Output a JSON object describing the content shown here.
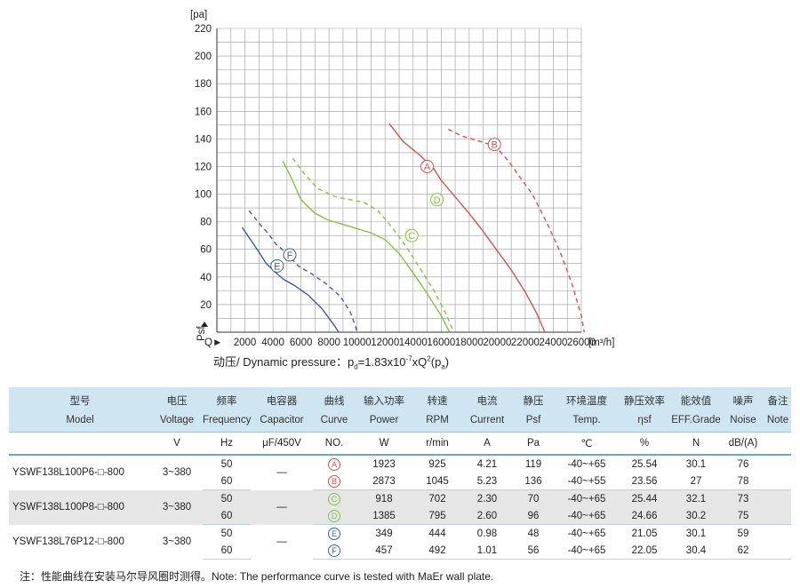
{
  "chart_data": {
    "type": "line",
    "x": {
      "min": 0,
      "max": 26000,
      "ticks": [
        2000,
        4000,
        6000,
        8000,
        10000,
        12000,
        14000,
        16000,
        18000,
        20000,
        22000,
        24000,
        26000
      ],
      "prefix": "Q►",
      "unit": "[m³/h]"
    },
    "y": {
      "min": 0,
      "max": 220,
      "ticks": [
        20,
        40,
        60,
        80,
        100,
        120,
        140,
        160,
        180,
        200,
        220
      ],
      "unit": "[pa]",
      "axis_tag": "Psf"
    },
    "grid": true,
    "series": [
      {
        "name": "A",
        "color": "#d9504c",
        "style": "solid",
        "label_at": [
          15000,
          120
        ],
        "points": [
          [
            12300,
            151
          ],
          [
            13300,
            138
          ],
          [
            14500,
            128
          ],
          [
            15500,
            118
          ],
          [
            16000,
            110
          ],
          [
            17000,
            98
          ],
          [
            18000,
            86
          ],
          [
            19000,
            73
          ],
          [
            20000,
            59
          ],
          [
            21000,
            45
          ],
          [
            22000,
            29
          ],
          [
            22800,
            14
          ],
          [
            23400,
            0
          ]
        ]
      },
      {
        "name": "B",
        "color": "#d9504c",
        "style": "dashed",
        "label_at": [
          19800,
          136
        ],
        "points": [
          [
            16500,
            147
          ],
          [
            17500,
            142
          ],
          [
            18500,
            139
          ],
          [
            19500,
            136
          ],
          [
            20000,
            133
          ],
          [
            20800,
            124
          ],
          [
            21500,
            114
          ],
          [
            22500,
            100
          ],
          [
            23500,
            80
          ],
          [
            24500,
            58
          ],
          [
            25300,
            36
          ],
          [
            26000,
            12
          ],
          [
            26200,
            0
          ]
        ]
      },
      {
        "name": "C",
        "color": "#82c341",
        "style": "solid",
        "label_at": [
          13900,
          70
        ],
        "points": [
          [
            4700,
            124
          ],
          [
            5300,
            112
          ],
          [
            6000,
            96
          ],
          [
            7000,
            86
          ],
          [
            8000,
            81
          ],
          [
            9000,
            78
          ],
          [
            10000,
            75
          ],
          [
            11000,
            72
          ],
          [
            12000,
            67
          ],
          [
            13000,
            57
          ],
          [
            14000,
            43
          ],
          [
            15000,
            28
          ],
          [
            16000,
            12
          ],
          [
            16600,
            0
          ]
        ]
      },
      {
        "name": "D",
        "color": "#82c341",
        "style": "dashed",
        "label_at": [
          15700,
          96
        ],
        "points": [
          [
            5400,
            126
          ],
          [
            6300,
            114
          ],
          [
            7200,
            104
          ],
          [
            8500,
            98
          ],
          [
            9500,
            96
          ],
          [
            10500,
            94
          ],
          [
            11500,
            88
          ],
          [
            12500,
            76
          ],
          [
            13500,
            62
          ],
          [
            14500,
            46
          ],
          [
            15500,
            30
          ],
          [
            16400,
            12
          ],
          [
            16900,
            0
          ]
        ]
      },
      {
        "name": "E",
        "color": "#3c5fa6",
        "style": "solid",
        "label_at": [
          4300,
          48
        ],
        "points": [
          [
            1800,
            76
          ],
          [
            2400,
            67
          ],
          [
            3000,
            58
          ],
          [
            3500,
            50
          ],
          [
            4100,
            44
          ],
          [
            4800,
            38
          ],
          [
            5500,
            34
          ],
          [
            6500,
            27
          ],
          [
            7500,
            17
          ],
          [
            8300,
            6
          ],
          [
            8700,
            0
          ]
        ]
      },
      {
        "name": "F",
        "color": "#3c5fa6",
        "style": "dashed",
        "label_at": [
          5200,
          56
        ],
        "points": [
          [
            2300,
            88
          ],
          [
            3000,
            79
          ],
          [
            3700,
            71
          ],
          [
            4200,
            64
          ],
          [
            5000,
            57
          ],
          [
            5800,
            48
          ],
          [
            6800,
            42
          ],
          [
            7800,
            35
          ],
          [
            8800,
            26
          ],
          [
            9500,
            15
          ],
          [
            9900,
            4
          ],
          [
            10000,
            0
          ]
        ]
      }
    ]
  },
  "pressure_note": {
    "label": "动压/ Dynamic pressure：",
    "p": "p",
    "d": "d",
    "formula_mid": "=1.83x10",
    "exp": "-7",
    "formula_end": "xQ",
    "sq": "2",
    "paren_open": "(p",
    "a": "a",
    "paren_close": ")"
  },
  "table": {
    "headers_cn": [
      "型号",
      "电压",
      "频率",
      "电容器",
      "曲线",
      "输入功率",
      "转速",
      "电流",
      "静压",
      "环境温度",
      "静压效率",
      "能效值",
      "噪声",
      "备注"
    ],
    "headers_en": [
      "Model",
      "Voltage",
      "Frequency",
      "Capacitor",
      "Curve",
      "Power",
      "RPM",
      "Current",
      "Psf",
      "Temp.",
      "ηsf",
      "EFF.Grade",
      "Noise",
      "Note"
    ],
    "units": [
      "",
      "V",
      "Hz",
      "μF/450V",
      "NO.",
      "W",
      "r/min",
      "A",
      "Pa",
      "℃",
      "%",
      "N",
      "dB/(A)",
      ""
    ],
    "groups": [
      {
        "model": "YSWF138L100P6-□-800",
        "voltage": "3~380",
        "capacitor": "—",
        "rows": [
          {
            "hz": "50",
            "curve": "A",
            "curve_color": "#d9504c",
            "power": "1923",
            "rpm": "925",
            "current": "4.21",
            "psf": "119",
            "temp": "-40~+65",
            "eff": "25.54",
            "grade": "30.1",
            "noise": "76"
          },
          {
            "hz": "60",
            "curve": "B",
            "curve_color": "#d9504c",
            "power": "2873",
            "rpm": "1045",
            "current": "5.23",
            "psf": "136",
            "temp": "-40~+55",
            "eff": "23.56",
            "grade": "27",
            "noise": "78"
          }
        ]
      },
      {
        "model": "YSWF138L100P8-□-800",
        "voltage": "3~380",
        "capacitor": "—",
        "rows": [
          {
            "hz": "50",
            "curve": "C",
            "curve_color": "#82c341",
            "power": "918",
            "rpm": "702",
            "current": "2.30",
            "psf": "70",
            "temp": "-40~+65",
            "eff": "25.44",
            "grade": "32.1",
            "noise": "73"
          },
          {
            "hz": "60",
            "curve": "D",
            "curve_color": "#82c341",
            "power": "1385",
            "rpm": "795",
            "current": "2.60",
            "psf": "96",
            "temp": "-40~+65",
            "eff": "24.66",
            "grade": "30.2",
            "noise": "75"
          }
        ]
      },
      {
        "model": "YSWF138L76P12-□-800",
        "voltage": "3~380",
        "capacitor": "—",
        "rows": [
          {
            "hz": "50",
            "curve": "E",
            "curve_color": "#3c5fa6",
            "power": "349",
            "rpm": "444",
            "current": "0.98",
            "psf": "48",
            "temp": "-40~+65",
            "eff": "21.05",
            "grade": "30.1",
            "noise": "59"
          },
          {
            "hz": "60",
            "curve": "F",
            "curve_color": "#3c5fa6",
            "power": "457",
            "rpm": "492",
            "current": "1.01",
            "psf": "56",
            "temp": "-40~+65",
            "eff": "22.05",
            "grade": "30.4",
            "noise": "62"
          }
        ]
      }
    ]
  },
  "footnote": "注：性能曲线在安装马尔导风圈时测得。Note: The performance curve is tested with MaEr wall plate."
}
